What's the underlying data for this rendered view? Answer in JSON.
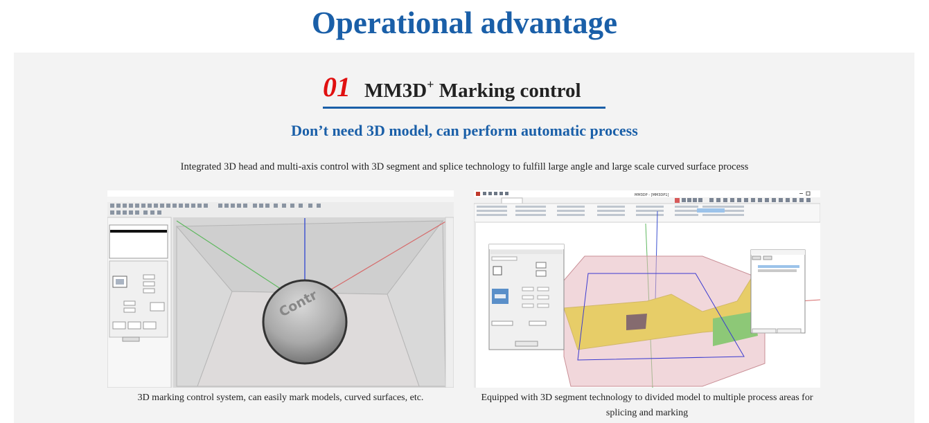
{
  "page": {
    "title": "Operational advantage"
  },
  "section": {
    "number": "01",
    "title_main": "MM3D",
    "title_sup": "+",
    "title_rest": " Marking control",
    "subtitle": "Don’t need 3D model, can perform automatic process",
    "description": "Integrated 3D head and multi-axis control with 3D segment and splice technology to fulfill large angle and large scale curved surface process"
  },
  "screenshots": [
    {
      "caption": "3D marking control system, can easily mark models, curved surfaces, etc.",
      "sphere_text": "Contr"
    },
    {
      "caption": "Equipped with 3D segment technology to divided model to multiple process areas for splicing and marking",
      "window_title": "MM3DP - [MM3DP1]"
    }
  ],
  "colors": {
    "accent_blue": "#1a5fa8",
    "number_red": "#e01010",
    "panel_bg": "#f3f3f3"
  }
}
